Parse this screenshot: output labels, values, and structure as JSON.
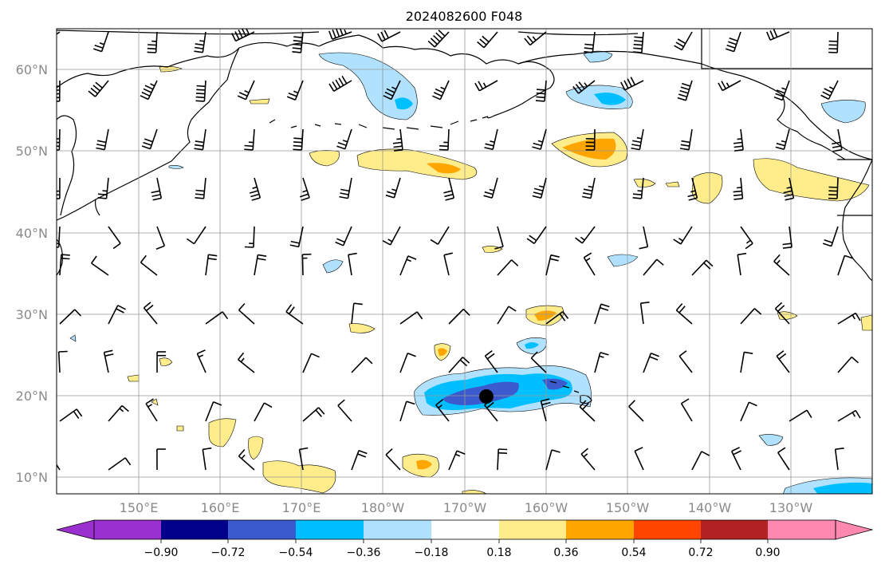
{
  "title": "2024082600 F048",
  "map": {
    "lat_labels": [
      "60°N",
      "50°N",
      "40°N",
      "30°N",
      "20°N",
      "10°N"
    ],
    "lon_labels": [
      "150°E",
      "160°E",
      "170°E",
      "180°W",
      "170°W",
      "160°W",
      "150°W",
      "140°W",
      "130°W"
    ],
    "gridlines": true
  },
  "colorbar": {
    "ticks": [
      "−0.90",
      "−0.72",
      "−0.54",
      "−0.36",
      "−0.18",
      "0.18",
      "0.36",
      "0.54",
      "0.72",
      "0.90"
    ],
    "colors": [
      "#9b30d0",
      "#00008b",
      "#3a5acd",
      "#00bfff",
      "#b0e2ff",
      "#ffffff",
      "#ffec8b",
      "#ffa500",
      "#ff4500",
      "#b22222",
      "#ff88b0"
    ],
    "extend": "both"
  },
  "marker": {
    "label": "storm-center",
    "lat": 20,
    "lon": -167,
    "color": "#000000"
  }
}
